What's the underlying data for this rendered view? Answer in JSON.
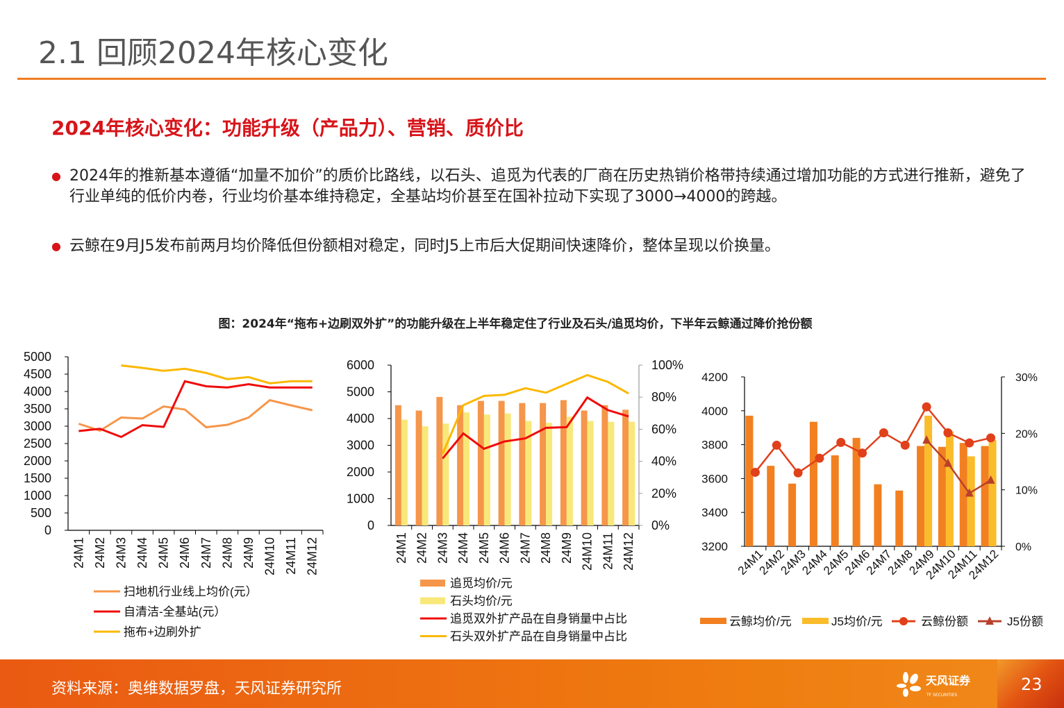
{
  "header": {
    "title": "2.1 回顾2024年核心变化"
  },
  "subtitle": "2024年核心变化：功能升级（产品力）、营销、质价比",
  "bullets": [
    "2024年的推新基本遵循“加量不加价”的质价比路线，以石头、追觅为代表的厂商在历史热销价格带持续通过增加功能的方式进行推新，避免了行业单纯的低价内卷，行业均价基本维持稳定，全基站均价甚至在国补拉动下实现了3000→4000的跨越。",
    "云鲸在9月J5发布前两月均价降低但份额相对稳定，同时J5上市后大促期间快速降价，整体呈现以价换量。"
  ],
  "figure_caption": "图：2024年“拖布+边刷双外扩”的功能升级在上半年稳定住了行业及石头/追觅均价，下半年云鲸通过降价抢份额",
  "footer": {
    "source": "资料来源：奥维数据罗盘，天风证券研究所",
    "logo_cn": "天风证券",
    "logo_en": "TF SECURITIES",
    "page": "23"
  },
  "colors": {
    "accent": "#f07c22",
    "subtitle_red": "#d7141a",
    "footer": "#ea5a12"
  },
  "chart_data": [
    {
      "type": "line",
      "categories": [
        "24M1",
        "24M2",
        "24M3",
        "24M4",
        "24M5",
        "24M6",
        "24M7",
        "24M8",
        "24M9",
        "24M10",
        "24M11",
        "24M12"
      ],
      "ylim": [
        0,
        5000
      ],
      "yticks": [
        "0",
        "500",
        "1000",
        "1500",
        "2000",
        "2500",
        "3000",
        "3500",
        "4000",
        "4500",
        "5000"
      ],
      "legend": "bottom",
      "grid": false,
      "series": [
        {
          "name": "扫地机行业线上均价(元）",
          "color": "#f5964a",
          "values": [
            3070,
            2870,
            3250,
            3220,
            3570,
            3480,
            2970,
            3040,
            3250,
            3750,
            3600,
            3460
          ]
        },
        {
          "name": "自清洁-全基站(元）",
          "color": "#f00a0a",
          "values": [
            2860,
            2925,
            2690,
            3030,
            2980,
            4295,
            4150,
            4115,
            4210,
            4115,
            4115,
            4115
          ]
        },
        {
          "name": "拖布+边刷外扩",
          "color": "#fbb800",
          "values": [
            null,
            null,
            4750,
            4680,
            4595,
            4655,
            4535,
            4355,
            4415,
            4235,
            4295,
            4295
          ]
        }
      ]
    },
    {
      "type": "bar+line",
      "categories": [
        "24M1",
        "24M2",
        "24M3",
        "24M4",
        "24M5",
        "24M6",
        "24M7",
        "24M8",
        "24M9",
        "24M10",
        "24M11",
        "24M12"
      ],
      "ylim": [
        0,
        6000
      ],
      "yticks": [
        "0",
        "1000",
        "2000",
        "3000",
        "4000",
        "5000",
        "6000"
      ],
      "y2lim": [
        0,
        100
      ],
      "y2ticks": [
        "0%",
        "20%",
        "40%",
        "60%",
        "80%",
        "100%"
      ],
      "legend": "bottom",
      "grid": false,
      "series": [
        {
          "name": "追觅均价/元",
          "kind": "bar",
          "axis": "left",
          "color": "#f5964a",
          "values": [
            4500,
            4300,
            4810,
            4500,
            4660,
            4660,
            4580,
            4580,
            4690,
            4300,
            4500,
            4330
          ]
        },
        {
          "name": "石头均价/元",
          "kind": "bar",
          "axis": "left",
          "color": "#f8e87a",
          "values": [
            3960,
            3710,
            3810,
            4230,
            4150,
            4190,
            3910,
            3840,
            4070,
            3910,
            3880,
            3880
          ]
        },
        {
          "name": "追觅双外扩产品在自身销量中占比",
          "kind": "line",
          "axis": "right",
          "color": "#f00a0a",
          "values": [
            null,
            null,
            41.8,
            57.4,
            47.8,
            52.4,
            54.3,
            60.9,
            61.3,
            79.8,
            71.9,
            68.0
          ]
        },
        {
          "name": "石头双外扩产品在自身销量中占比",
          "kind": "line",
          "axis": "right",
          "color": "#fbb800",
          "values": [
            null,
            null,
            44.7,
            75.0,
            80.8,
            81.5,
            85.6,
            82.8,
            88.3,
            93.8,
            89.5,
            82.3
          ]
        }
      ]
    },
    {
      "type": "bar+line",
      "categories": [
        "24M1",
        "24M2",
        "24M3",
        "24M4",
        "24M5",
        "24M6",
        "24M7",
        "24M8",
        "24M9",
        "24M10",
        "24M11",
        "24M12"
      ],
      "ylim": [
        3200,
        4200
      ],
      "yticks": [
        "3200",
        "3400",
        "3600",
        "3800",
        "4000",
        "4200"
      ],
      "y2lim": [
        0,
        30
      ],
      "y2ticks": [
        "0%",
        "10%",
        "20%",
        "30%"
      ],
      "legend": "bottom",
      "grid": false,
      "series": [
        {
          "name": "云鲸均价/元",
          "kind": "bar",
          "axis": "left",
          "color": "#f28020",
          "values": [
            3971,
            3675,
            3570,
            3935,
            3737,
            3840,
            3566,
            3529,
            3792,
            3787,
            3810,
            3792
          ]
        },
        {
          "name": "J5均价/元",
          "kind": "bar",
          "axis": "left",
          "color": "#fbbc2c",
          "values": [
            null,
            null,
            null,
            null,
            null,
            null,
            null,
            null,
            3971,
            3878,
            3731,
            3828
          ]
        },
        {
          "name": "云鲸份额",
          "kind": "line",
          "marker": "circle",
          "axis": "right",
          "color": "#e0401a",
          "values": [
            13.1,
            17.9,
            13.0,
            15.6,
            18.4,
            16.5,
            20.1,
            17.9,
            24.7,
            20.1,
            18.3,
            19.2
          ]
        },
        {
          "name": "J5份额",
          "kind": "line",
          "marker": "triangle",
          "axis": "right",
          "color": "#b8402a",
          "values": [
            null,
            null,
            null,
            null,
            null,
            null,
            null,
            null,
            18.8,
            14.7,
            9.4,
            11.7
          ]
        }
      ]
    }
  ]
}
